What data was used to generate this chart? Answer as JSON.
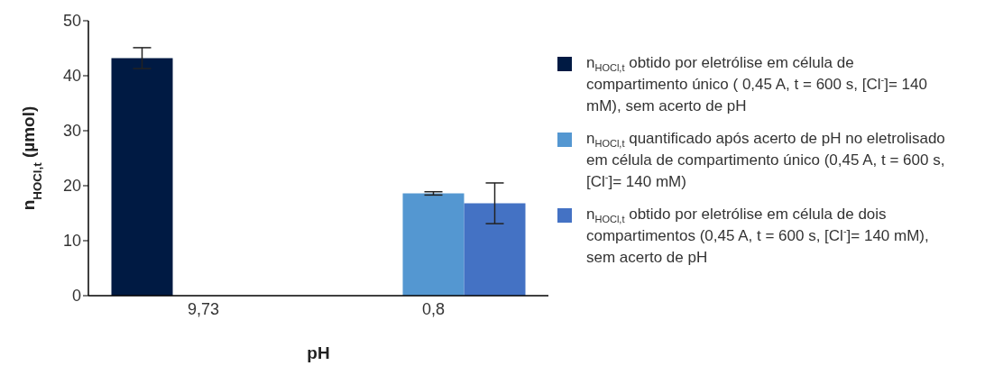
{
  "chart_data": {
    "type": "bar",
    "xlabel": "pH",
    "ylabel": "n$_{HOCl,t}$ (µmol)",
    "categories": [
      "9,73",
      "0,8"
    ],
    "series": [
      {
        "name": "n$_{HOCl,t}$ obtido por eletrólise em célula de compartimento único ( 0,45 A, t = 600 s, [Cl$^{-}$]= 140 mM), sem acerto de pH",
        "color": "#001a43",
        "values": [
          43.2,
          null
        ],
        "errors": [
          1.9,
          null
        ]
      },
      {
        "name": "n$_{HOCl,t}$ quantificado após acerto de pH no eletrolisado em célula de compartimento único (0,45 A, t = 600 s, [Cl$^{-}$]= 140 mM)",
        "color": "#5497d1",
        "values": [
          null,
          18.6
        ],
        "errors": [
          null,
          0.3
        ]
      },
      {
        "name": "n$_{HOCl,t}$ obtido por eletrólise em célula de dois compartimentos (0,45 A, t = 600 s, [Cl$^{-}$]= 140 mM), sem acerto de pH",
        "color": "#4472c4",
        "values": [
          null,
          16.8
        ],
        "errors": [
          null,
          3.7
        ]
      }
    ],
    "ylim": [
      0,
      50
    ],
    "yticks": [
      0,
      10,
      20,
      30,
      40,
      50
    ],
    "legend": "right"
  }
}
